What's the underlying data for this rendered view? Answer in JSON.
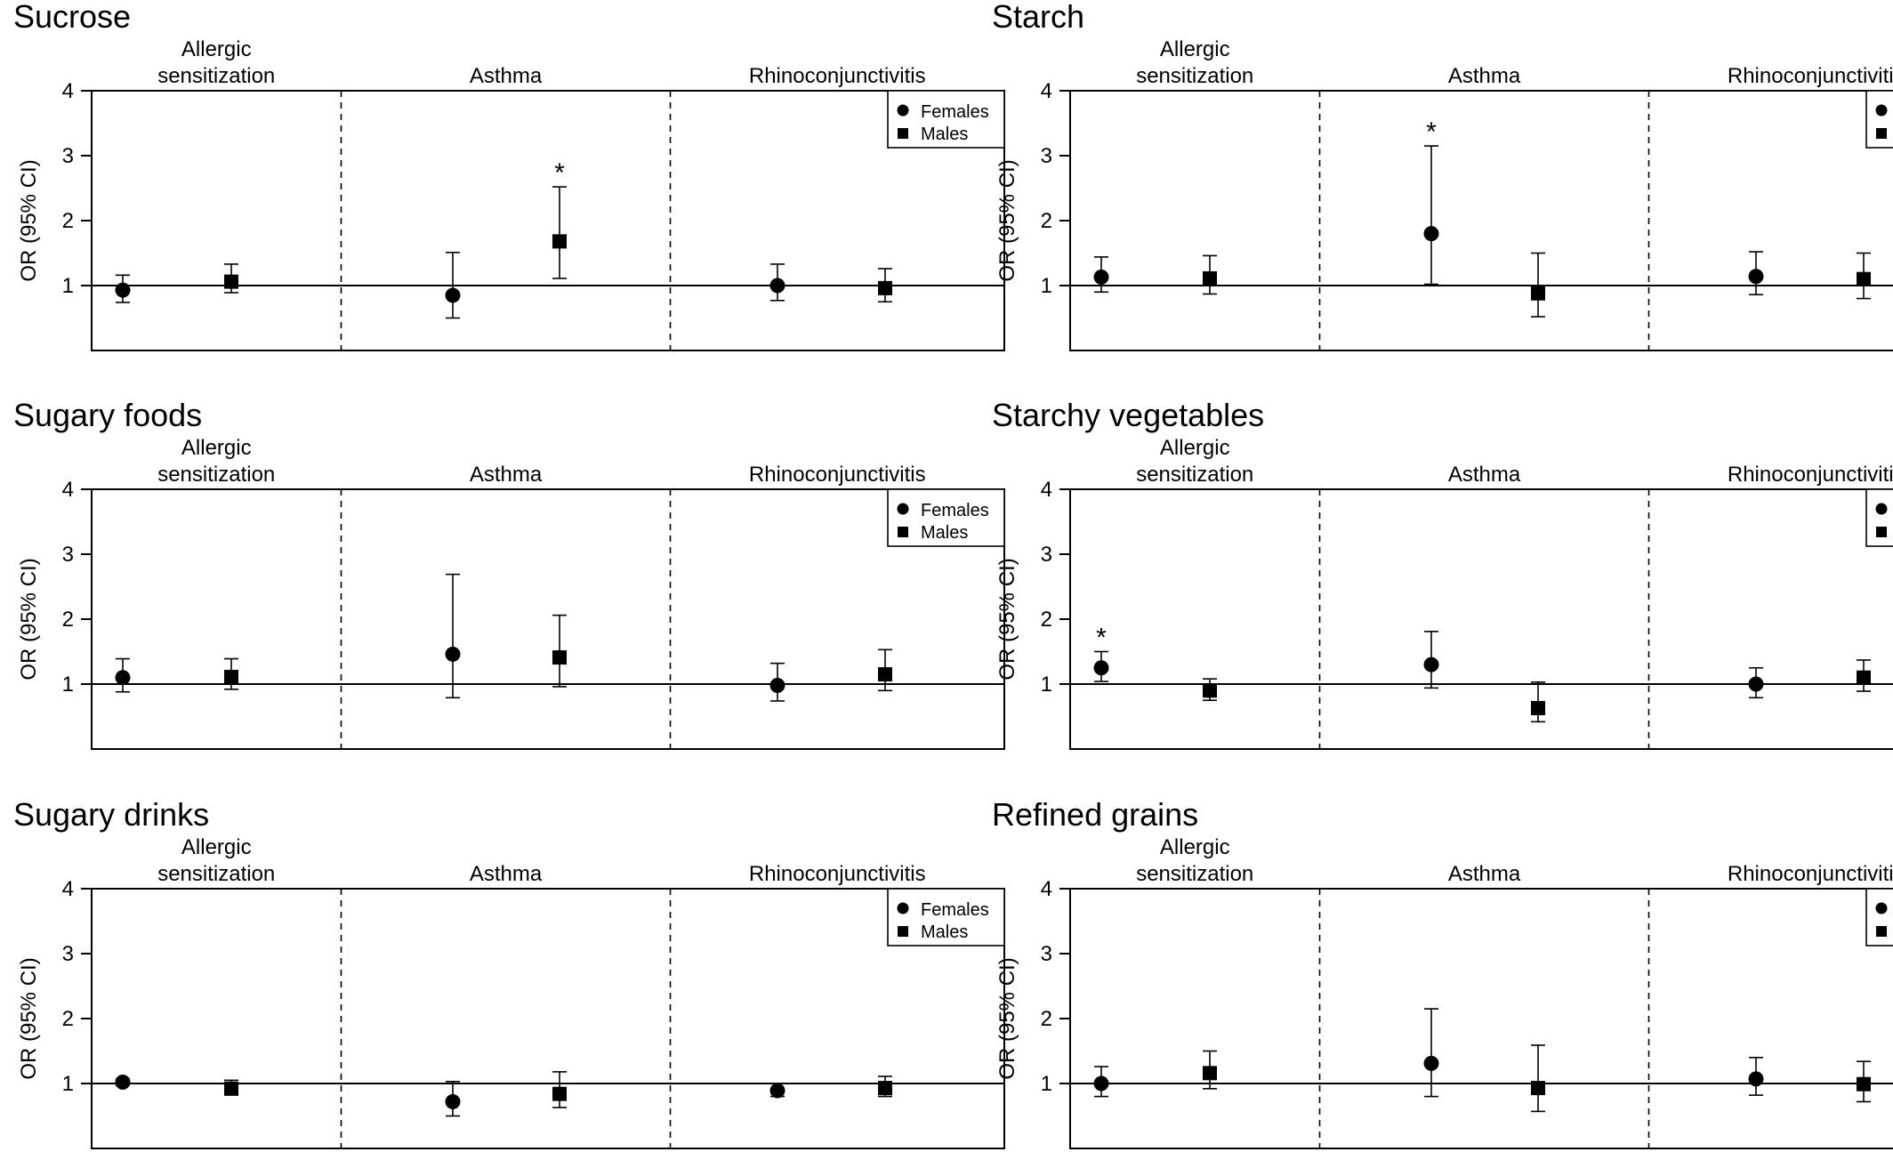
{
  "chart_data": [
    {
      "type": "forest",
      "title": "Sucrose",
      "ylabel": "OR (95% CI)",
      "ylim": [
        0,
        4
      ],
      "yticks": [
        1,
        2,
        3,
        4
      ],
      "reference_line": 1,
      "groups": [
        "Allergic\nsensitization",
        "Asthma",
        "Rhinoconjunctivitis"
      ],
      "legend": {
        "position": "top-right",
        "entries": [
          "Females",
          "Males"
        ]
      },
      "series": [
        {
          "name": "Females",
          "marker": "circle",
          "or": [
            0.93,
            0.85,
            1.0
          ],
          "lower": [
            0.74,
            0.5,
            0.77
          ],
          "upper": [
            1.16,
            1.51,
            1.33
          ],
          "significant": [
            false,
            false,
            false
          ]
        },
        {
          "name": "Males",
          "marker": "square",
          "or": [
            1.06,
            1.68,
            0.96
          ],
          "lower": [
            0.89,
            1.11,
            0.75
          ],
          "upper": [
            1.33,
            2.52,
            1.26
          ],
          "significant": [
            false,
            true,
            false
          ]
        }
      ]
    },
    {
      "type": "forest",
      "title": "Starch",
      "ylabel": "OR (95% CI)",
      "ylim": [
        0,
        4
      ],
      "yticks": [
        1,
        2,
        3,
        4
      ],
      "reference_line": 1,
      "groups": [
        "Allergic\nsensitization",
        "Asthma",
        "Rhinoconjunctivitis"
      ],
      "legend": {
        "position": "top-right",
        "entries": [
          "Females",
          "Males"
        ]
      },
      "series": [
        {
          "name": "Females",
          "marker": "circle",
          "or": [
            1.13,
            1.8,
            1.14
          ],
          "lower": [
            0.9,
            1.02,
            0.86
          ],
          "upper": [
            1.44,
            3.15,
            1.52
          ],
          "significant": [
            false,
            true,
            false
          ]
        },
        {
          "name": "Males",
          "marker": "square",
          "or": [
            1.11,
            0.88,
            1.1
          ],
          "lower": [
            0.87,
            0.52,
            0.8
          ],
          "upper": [
            1.46,
            1.5,
            1.5
          ],
          "significant": [
            false,
            false,
            false
          ]
        }
      ]
    },
    {
      "type": "forest",
      "title": "Sugary foods",
      "ylabel": "OR (95% CI)",
      "ylim": [
        0,
        4
      ],
      "yticks": [
        1,
        2,
        3,
        4
      ],
      "reference_line": 1,
      "groups": [
        "Allergic\nsensitization",
        "Asthma",
        "Rhinoconjunctivitis"
      ],
      "legend": {
        "position": "top-right",
        "entries": [
          "Females",
          "Males"
        ]
      },
      "series": [
        {
          "name": "Females",
          "marker": "circle",
          "or": [
            1.1,
            1.46,
            0.98
          ],
          "lower": [
            0.88,
            0.79,
            0.74
          ],
          "upper": [
            1.39,
            2.69,
            1.32
          ],
          "significant": [
            false,
            false,
            false
          ]
        },
        {
          "name": "Males",
          "marker": "square",
          "or": [
            1.11,
            1.41,
            1.15
          ],
          "lower": [
            0.92,
            0.96,
            0.9
          ],
          "upper": [
            1.39,
            2.06,
            1.53
          ],
          "significant": [
            false,
            false,
            false
          ]
        }
      ]
    },
    {
      "type": "forest",
      "title": "Starchy vegetables",
      "ylabel": "OR (95% CI)",
      "ylim": [
        0,
        4
      ],
      "yticks": [
        1,
        2,
        3,
        4
      ],
      "reference_line": 1,
      "groups": [
        "Allergic\nsensitization",
        "Asthma",
        "Rhinoconjunctivitis"
      ],
      "legend": {
        "position": "top-right",
        "entries": [
          "Females",
          "Males"
        ]
      },
      "series": [
        {
          "name": "Females",
          "marker": "circle",
          "or": [
            1.25,
            1.3,
            1.0
          ],
          "lower": [
            1.04,
            0.94,
            0.79
          ],
          "upper": [
            1.5,
            1.81,
            1.25
          ],
          "significant": [
            true,
            false,
            false
          ]
        },
        {
          "name": "Males",
          "marker": "square",
          "or": [
            0.9,
            0.63,
            1.1
          ],
          "lower": [
            0.75,
            0.42,
            0.89
          ],
          "upper": [
            1.08,
            1.03,
            1.37
          ],
          "significant": [
            false,
            false,
            false
          ]
        }
      ]
    },
    {
      "type": "forest",
      "title": "Sugary drinks",
      "ylabel": "OR (95% CI)",
      "ylim": [
        0,
        4
      ],
      "yticks": [
        1,
        2,
        3,
        4
      ],
      "reference_line": 1,
      "groups": [
        "Allergic\nsensitization",
        "Asthma",
        "Rhinoconjunctivitis"
      ],
      "legend": {
        "position": "top-right",
        "entries": [
          "Females",
          "Males"
        ]
      },
      "series": [
        {
          "name": "Females",
          "marker": "circle",
          "or": [
            1.02,
            0.72,
            0.89
          ],
          "lower": [
            0.97,
            0.5,
            0.8
          ],
          "upper": [
            1.07,
            1.03,
            1.0
          ],
          "significant": [
            false,
            false,
            false
          ]
        },
        {
          "name": "Males",
          "marker": "square",
          "or": [
            0.92,
            0.84,
            0.93
          ],
          "lower": [
            0.83,
            0.63,
            0.8
          ],
          "upper": [
            1.05,
            1.18,
            1.11
          ],
          "significant": [
            false,
            false,
            false
          ]
        }
      ]
    },
    {
      "type": "forest",
      "title": "Refined grains",
      "ylabel": "OR (95% CI)",
      "ylim": [
        0,
        4
      ],
      "yticks": [
        1,
        2,
        3,
        4
      ],
      "reference_line": 1,
      "groups": [
        "Allergic\nsensitization",
        "Asthma",
        "Rhinoconjunctivitis"
      ],
      "legend": {
        "position": "top-right",
        "entries": [
          "Females",
          "Males"
        ]
      },
      "series": [
        {
          "name": "Females",
          "marker": "circle",
          "or": [
            1.0,
            1.31,
            1.07
          ],
          "lower": [
            0.8,
            0.8,
            0.82
          ],
          "upper": [
            1.26,
            2.15,
            1.4
          ],
          "significant": [
            false,
            false,
            false
          ]
        },
        {
          "name": "Males",
          "marker": "square",
          "or": [
            1.16,
            0.93,
            0.99
          ],
          "lower": [
            0.92,
            0.57,
            0.72
          ],
          "upper": [
            1.5,
            1.59,
            1.34
          ],
          "significant": [
            false,
            false,
            false
          ]
        }
      ]
    }
  ],
  "significance_marker": "*"
}
